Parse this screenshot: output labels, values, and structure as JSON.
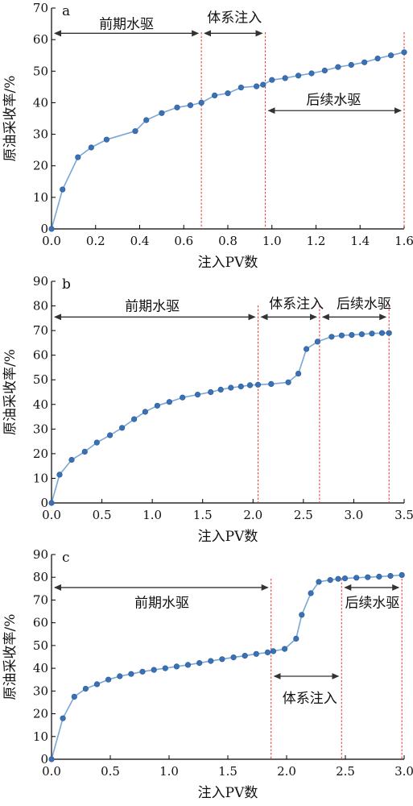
{
  "chart_data": [
    {
      "type": "line",
      "panel_label": "a",
      "xlabel": "注入PV数",
      "ylabel": "原油采收率/%",
      "xlim": [
        0,
        1.6
      ],
      "ylim": [
        0,
        70
      ],
      "xticks": [
        "0.0",
        "0.2",
        "0.4",
        "0.6",
        "0.8",
        "1.0",
        "1.2",
        "1.4",
        "1.6"
      ],
      "yticks": [
        "0",
        "10",
        "20",
        "30",
        "40",
        "50",
        "60",
        "70"
      ],
      "series": [
        {
          "x": [
            0,
            0.05,
            0.12,
            0.18,
            0.25,
            0.38,
            0.43,
            0.5,
            0.57,
            0.63,
            0.68,
            0.74,
            0.8,
            0.86,
            0.93,
            0.96,
            1.0,
            1.06,
            1.12,
            1.18,
            1.24,
            1.3,
            1.36,
            1.42,
            1.48,
            1.54,
            1.6
          ],
          "y": [
            0,
            12.5,
            22.7,
            25.8,
            28.3,
            31.0,
            34.5,
            36.7,
            38.5,
            39.2,
            40.0,
            42.3,
            43.0,
            44.8,
            45.2,
            45.7,
            47.2,
            47.8,
            48.6,
            49.3,
            50.2,
            51.3,
            52.0,
            52.8,
            54.0,
            55.0,
            56.0
          ]
        }
      ],
      "phase_boundaries": [
        0.68,
        0.97,
        1.6
      ],
      "phases": [
        {
          "label": "前期水驱",
          "x_range": [
            0.0,
            0.68
          ],
          "arrow_y": 62,
          "label_x": 0.34,
          "label_y": 65
        },
        {
          "label": "体系注入",
          "x_range": [
            0.68,
            0.97
          ],
          "arrow_y": 62,
          "label_x": 0.83,
          "label_y": 67
        },
        {
          "label": "后续水驱",
          "x_range": [
            0.97,
            1.6
          ],
          "arrow_y": 37.5,
          "label_x": 1.28,
          "label_y": 41
        }
      ],
      "color": "#3a70b5",
      "grid": false
    },
    {
      "type": "line",
      "panel_label": "b",
      "xlabel": "注入PV数",
      "ylabel": "原油采收率/%",
      "xlim": [
        0,
        3.5
      ],
      "ylim": [
        0,
        90
      ],
      "xticks": [
        "0.0",
        "0.5",
        "1.0",
        "1.5",
        "2.0",
        "2.5",
        "3.0",
        "3.5"
      ],
      "yticks": [
        "0",
        "10",
        "20",
        "30",
        "40",
        "50",
        "60",
        "70",
        "80",
        "90"
      ],
      "series": [
        {
          "x": [
            0,
            0.08,
            0.2,
            0.33,
            0.45,
            0.58,
            0.7,
            0.82,
            0.93,
            1.05,
            1.17,
            1.3,
            1.45,
            1.58,
            1.68,
            1.78,
            1.88,
            1.97,
            2.05,
            2.18,
            2.35,
            2.45,
            2.53,
            2.64,
            2.78,
            2.88,
            2.98,
            3.08,
            3.18,
            3.28,
            3.35
          ],
          "y": [
            0,
            11.5,
            17.5,
            20.8,
            24.5,
            27.5,
            30.5,
            34.0,
            37.0,
            39.5,
            41.0,
            42.8,
            44.0,
            45.0,
            46.0,
            46.8,
            47.3,
            47.8,
            48.0,
            48.3,
            49.0,
            52.5,
            62.5,
            65.5,
            67.5,
            68.0,
            68.2,
            68.5,
            68.8,
            69.0,
            69.0
          ]
        }
      ],
      "phase_boundaries": [
        2.05,
        2.66,
        3.35
      ],
      "phases": [
        {
          "label": "前期水驱",
          "x_range": [
            0.0,
            2.05
          ],
          "arrow_y": 75.5,
          "label_x": 1.0,
          "label_y": 80
        },
        {
          "label": "体系注入",
          "x_range": [
            2.05,
            2.66
          ],
          "arrow_y": 75.5,
          "label_x": 2.43,
          "label_y": 81
        },
        {
          "label": "后续水驱",
          "x_range": [
            2.66,
            3.35
          ],
          "arrow_y": 75.5,
          "label_x": 3.1,
          "label_y": 81
        }
      ],
      "color": "#3a70b5",
      "grid": false
    },
    {
      "type": "line",
      "panel_label": "c",
      "xlabel": "注入PV数",
      "ylabel": "原油采收率/%",
      "xlim": [
        0,
        3.1
      ],
      "ylim": [
        0,
        90
      ],
      "xticks": [
        "0.0",
        "0.5",
        "1.0",
        "1.5",
        "2.0",
        "2.5",
        "3.0"
      ],
      "yticks": [
        "0",
        "10",
        "20",
        "30",
        "40",
        "50",
        "60",
        "70",
        "80",
        "90"
      ],
      "series": [
        {
          "x": [
            0,
            0.1,
            0.2,
            0.3,
            0.4,
            0.5,
            0.6,
            0.7,
            0.8,
            0.9,
            1.0,
            1.1,
            1.2,
            1.3,
            1.4,
            1.5,
            1.6,
            1.7,
            1.8,
            1.9,
            1.95,
            2.05,
            2.15,
            2.2,
            2.28,
            2.35,
            2.45,
            2.52,
            2.58,
            2.68,
            2.78,
            2.88,
            2.98,
            3.08
          ],
          "y": [
            0,
            18.0,
            27.5,
            31.0,
            33.0,
            35.0,
            36.5,
            37.5,
            38.5,
            39.3,
            40.0,
            40.8,
            41.5,
            42.3,
            43.2,
            44.0,
            44.8,
            45.5,
            46.3,
            47.0,
            47.5,
            48.5,
            53.0,
            63.5,
            73.0,
            78.0,
            78.8,
            79.3,
            79.5,
            79.8,
            80.0,
            80.3,
            80.6,
            81.0
          ]
        }
      ],
      "phase_boundaries": [
        1.93,
        2.55,
        3.08
      ],
      "phases": [
        {
          "label": "前期水驱",
          "x_range": [
            0.0,
            1.93
          ],
          "arrow_y": 75.5,
          "label_x": 0.97,
          "label_y": 69
        },
        {
          "label": "体系注入",
          "x_range": [
            1.93,
            2.55
          ],
          "arrow_y": 36.5,
          "label_x": 2.27,
          "label_y": 27
        },
        {
          "label": "后续水驱",
          "x_range": [
            2.55,
            3.08
          ],
          "arrow_y": 75.5,
          "label_x": 2.82,
          "label_y": 69
        }
      ],
      "color": "#3a70b5",
      "grid": false
    }
  ]
}
